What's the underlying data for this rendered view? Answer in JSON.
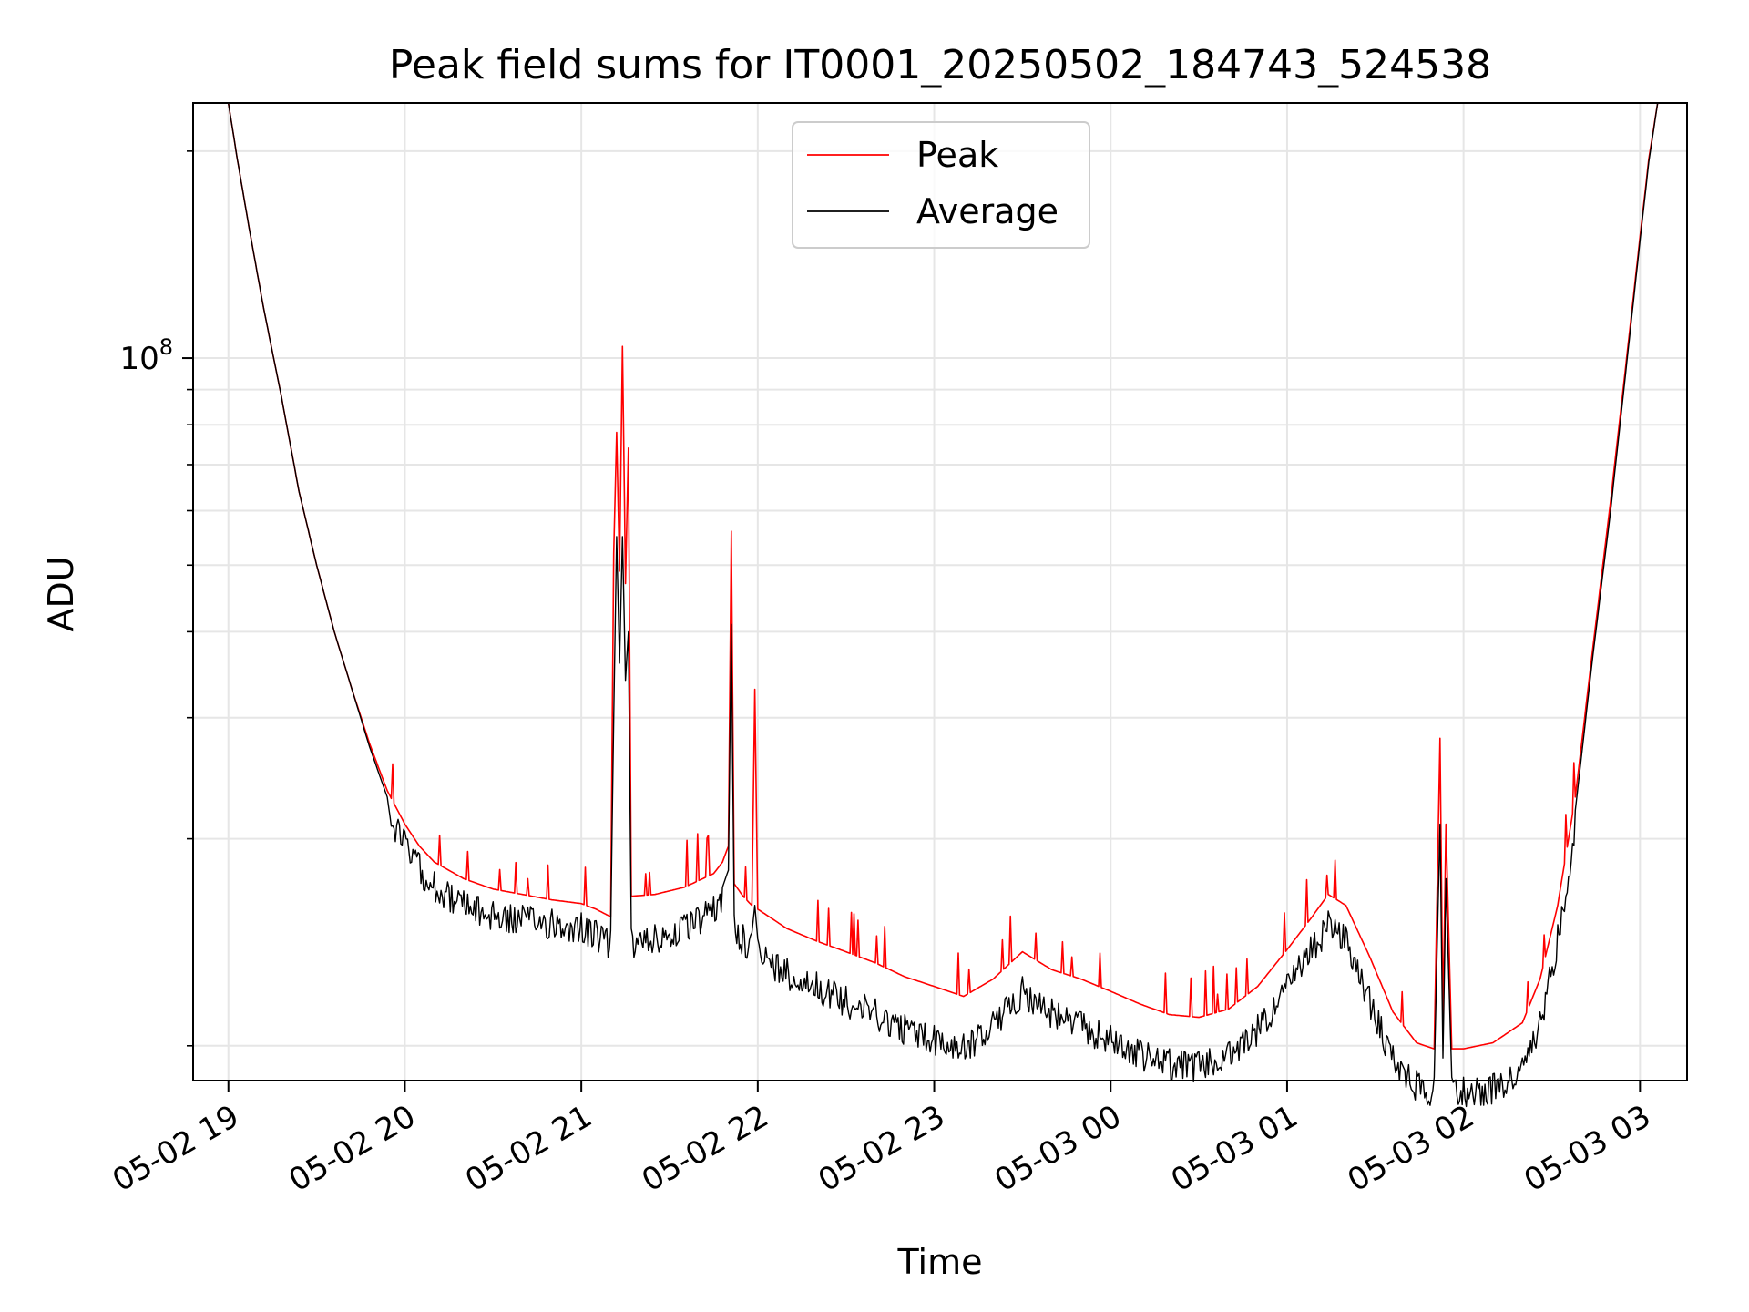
{
  "chart_data": {
    "type": "line",
    "title": "Peak field sums for IT0001_20250502_184743_524538",
    "xlabel": "Time",
    "ylabel": "ADU",
    "y_scale": "log",
    "ylim": [
      8900000,
      235000000
    ],
    "xlim": [
      "05-02 18:48",
      "05-03 03:16"
    ],
    "x_tick_labels": [
      "05-02 19",
      "05-02 20",
      "05-02 21",
      "05-02 22",
      "05-02 23",
      "05-03 00",
      "05-03 01",
      "05-03 02",
      "05-03 03"
    ],
    "y_tick_labels": [
      {
        "label": "10",
        "exponent": "8",
        "value": 100000000
      }
    ],
    "y_major_ticks": [
      100000000
    ],
    "y_minor_ticks": [
      10000000,
      20000000,
      30000000,
      40000000,
      50000000,
      60000000,
      70000000,
      80000000,
      90000000,
      200000000
    ],
    "grid": true,
    "legend": "top-center",
    "series": [
      {
        "name": "Peak",
        "color": "#ff0000",
        "points": [
          [
            "05-02 19:00",
            235000000
          ],
          [
            "05-02 19:03",
            195000000
          ],
          [
            "05-02 19:07",
            155000000
          ],
          [
            "05-02 19:12",
            118000000
          ],
          [
            "05-02 19:18",
            88000000
          ],
          [
            "05-02 19:24",
            64000000
          ],
          [
            "05-02 19:30",
            50000000
          ],
          [
            "05-02 19:36",
            40000000
          ],
          [
            "05-02 19:42",
            33000000
          ],
          [
            "05-02 19:48",
            27500000
          ],
          [
            "05-02 19:54",
            23500000
          ],
          [
            "05-02 20:00",
            21000000
          ],
          [
            "05-02 20:05",
            19500000
          ],
          [
            "05-02 20:10",
            18500000
          ],
          [
            "05-02 20:20",
            17500000
          ],
          [
            "05-02 20:30",
            16900000
          ],
          [
            "05-02 20:40",
            16600000
          ],
          [
            "05-02 20:50",
            16300000
          ],
          [
            "05-02 21:00",
            16100000
          ],
          [
            "05-02 21:05",
            15800000
          ],
          [
            "05-02 21:10",
            15400000
          ],
          [
            "05-02 21:11",
            52000000
          ],
          [
            "05-02 21:12",
            78000000
          ],
          [
            "05-02 21:13",
            49000000
          ],
          [
            "05-02 21:14",
            104000000
          ],
          [
            "05-02 21:15",
            47000000
          ],
          [
            "05-02 21:16",
            74000000
          ],
          [
            "05-02 21:17",
            16500000
          ],
          [
            "05-02 21:25",
            16600000
          ],
          [
            "05-02 21:35",
            17000000
          ],
          [
            "05-02 21:45",
            17800000
          ],
          [
            "05-02 21:48",
            18500000
          ],
          [
            "05-02 21:50",
            19500000
          ],
          [
            "05-02 21:51",
            56000000
          ],
          [
            "05-02 21:52",
            17200000
          ],
          [
            "05-02 21:55",
            16500000
          ],
          [
            "05-02 21:58",
            16000000
          ],
          [
            "05-02 21:59",
            33000000
          ],
          [
            "05-02 22:00",
            15800000
          ],
          [
            "05-02 22:10",
            14800000
          ],
          [
            "05-02 22:20",
            14200000
          ],
          [
            "05-02 22:30",
            13700000
          ],
          [
            "05-02 22:40",
            13200000
          ],
          [
            "05-02 22:50",
            12600000
          ],
          [
            "05-02 23:00",
            12200000
          ],
          [
            "05-02 23:10",
            11800000
          ],
          [
            "05-02 23:20",
            12500000
          ],
          [
            "05-02 23:30",
            13700000
          ],
          [
            "05-02 23:40",
            12900000
          ],
          [
            "05-02 23:50",
            12500000
          ],
          [
            "05-03 00:00",
            12000000
          ],
          [
            "05-03 00:10",
            11500000
          ],
          [
            "05-03 00:20",
            11100000
          ],
          [
            "05-03 00:30",
            11000000
          ],
          [
            "05-03 00:40",
            11300000
          ],
          [
            "05-03 00:50",
            12200000
          ],
          [
            "05-03 01:00",
            13800000
          ],
          [
            "05-03 01:08",
            15300000
          ],
          [
            "05-03 01:14",
            16600000
          ],
          [
            "05-03 01:20",
            16000000
          ],
          [
            "05-03 01:28",
            13500000
          ],
          [
            "05-03 01:36",
            11200000
          ],
          [
            "05-03 01:44",
            10100000
          ],
          [
            "05-03 01:50",
            9900000
          ],
          [
            "05-03 01:52",
            28000000
          ],
          [
            "05-03 01:53",
            11000000
          ],
          [
            "05-03 01:54",
            21000000
          ],
          [
            "05-03 01:56",
            9900000
          ],
          [
            "05-03 02:00",
            9900000
          ],
          [
            "05-03 02:10",
            10100000
          ],
          [
            "05-03 02:20",
            10800000
          ],
          [
            "05-03 02:26",
            12500000
          ],
          [
            "05-03 02:32",
            16000000
          ],
          [
            "05-03 02:38",
            23000000
          ],
          [
            "05-03 02:44",
            38000000
          ],
          [
            "05-03 02:50",
            62000000
          ],
          [
            "05-03 02:56",
            105000000
          ],
          [
            "05-03 03:00",
            150000000
          ],
          [
            "05-03 03:03",
            195000000
          ],
          [
            "05-03 03:06",
            235000000
          ]
        ]
      },
      {
        "name": "Average",
        "color": "#000000",
        "points": [
          [
            "05-02 19:00",
            235000000
          ],
          [
            "05-02 19:03",
            195000000
          ],
          [
            "05-02 19:07",
            155000000
          ],
          [
            "05-02 19:12",
            118000000
          ],
          [
            "05-02 19:18",
            88000000
          ],
          [
            "05-02 19:24",
            64000000
          ],
          [
            "05-02 19:30",
            50000000
          ],
          [
            "05-02 19:36",
            40000000
          ],
          [
            "05-02 19:42",
            33000000
          ],
          [
            "05-02 19:48",
            27200000
          ],
          [
            "05-02 19:54",
            23000000
          ],
          [
            "05-02 20:00",
            20500000
          ],
          [
            "05-02 20:05",
            19000000
          ],
          [
            "05-02 20:10",
            17900000
          ],
          [
            "05-02 20:20",
            16800000
          ],
          [
            "05-02 20:30",
            16200000
          ],
          [
            "05-02 20:40",
            16000000
          ],
          [
            "05-02 20:50",
            15800000
          ],
          [
            "05-02 21:00",
            15600000
          ],
          [
            "05-02 21:05",
            15200000
          ],
          [
            "05-02 21:10",
            14700000
          ],
          [
            "05-02 21:11",
            30000000
          ],
          [
            "05-02 21:12",
            55000000
          ],
          [
            "05-02 21:13",
            36000000
          ],
          [
            "05-02 21:14",
            55000000
          ],
          [
            "05-02 21:15",
            34000000
          ],
          [
            "05-02 21:16",
            40000000
          ],
          [
            "05-02 21:17",
            14800000
          ],
          [
            "05-02 21:25",
            15000000
          ],
          [
            "05-02 21:35",
            15500000
          ],
          [
            "05-02 21:45",
            16500000
          ],
          [
            "05-02 21:48",
            17000000
          ],
          [
            "05-02 21:50",
            18000000
          ],
          [
            "05-02 21:51",
            41000000
          ],
          [
            "05-02 21:52",
            15500000
          ],
          [
            "05-02 21:55",
            15000000
          ],
          [
            "05-02 21:58",
            14600000
          ],
          [
            "05-02 21:59",
            16000000
          ],
          [
            "05-02 22:00",
            14300000
          ],
          [
            "05-02 22:10",
            13400000
          ],
          [
            "05-02 22:20",
            12800000
          ],
          [
            "05-02 22:30",
            12200000
          ],
          [
            "05-02 22:40",
            11700000
          ],
          [
            "05-02 22:50",
            11100000
          ],
          [
            "05-02 23:00",
            10700000
          ],
          [
            "05-02 23:10",
            10400000
          ],
          [
            "05-02 23:20",
            11200000
          ],
          [
            "05-02 23:30",
            12600000
          ],
          [
            "05-02 23:40",
            11700000
          ],
          [
            "05-02 23:50",
            11200000
          ],
          [
            "05-03 00:00",
            10700000
          ],
          [
            "05-03 00:10",
            10200000
          ],
          [
            "05-03 00:20",
            9900000
          ],
          [
            "05-03 00:30",
            9800000
          ],
          [
            "05-03 00:40",
            10100000
          ],
          [
            "05-03 00:50",
            11100000
          ],
          [
            "05-03 01:00",
            12700000
          ],
          [
            "05-03 01:08",
            14400000
          ],
          [
            "05-03 01:14",
            15700000
          ],
          [
            "05-03 01:20",
            14900000
          ],
          [
            "05-03 01:28",
            12200000
          ],
          [
            "05-03 01:36",
            10000000
          ],
          [
            "05-03 01:44",
            9200000
          ],
          [
            "05-03 01:50",
            9000000
          ],
          [
            "05-03 01:52",
            21000000
          ],
          [
            "05-03 01:53",
            9600000
          ],
          [
            "05-03 01:54",
            17500000
          ],
          [
            "05-03 01:56",
            9000000
          ],
          [
            "05-03 02:00",
            9000000
          ],
          [
            "05-03 02:10",
            9100000
          ],
          [
            "05-03 02:20",
            9600000
          ],
          [
            "05-03 02:26",
            11200000
          ],
          [
            "05-03 02:32",
            15000000
          ],
          [
            "05-03 02:38",
            22000000
          ],
          [
            "05-03 02:44",
            37000000
          ],
          [
            "05-03 02:50",
            60000000
          ],
          [
            "05-03 02:56",
            103000000
          ],
          [
            "05-03 03:00",
            148000000
          ],
          [
            "05-03 03:03",
            193000000
          ],
          [
            "05-03 03:06",
            235000000
          ]
        ]
      }
    ]
  }
}
